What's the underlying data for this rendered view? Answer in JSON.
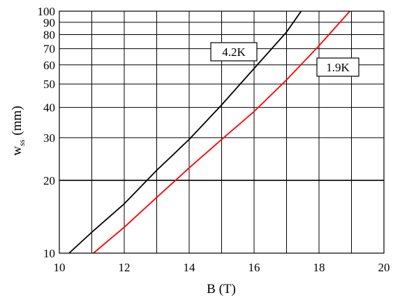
{
  "chart_data": {
    "type": "line",
    "title": "",
    "xlabel": "B (T)",
    "ylabel_main": "w",
    "ylabel_sub": "ss",
    "ylabel_unit": "(mm)",
    "xlim": [
      10,
      20
    ],
    "ylim": [
      10,
      100
    ],
    "yscale": "log",
    "grid": true,
    "xticks": [
      10,
      12,
      14,
      16,
      18,
      20
    ],
    "yticks": [
      10,
      20,
      30,
      40,
      50,
      60,
      70,
      80,
      90,
      100
    ],
    "series": [
      {
        "name": "4.2K",
        "color": "#000000",
        "x": [
          10.3,
          11,
          12,
          13,
          14,
          15,
          16,
          17,
          17.45
        ],
        "y": [
          10,
          12.2,
          16,
          22,
          29.5,
          41,
          58,
          82,
          100
        ]
      },
      {
        "name": "1.9K",
        "color": "#ff0000",
        "x": [
          11.05,
          12,
          13,
          14,
          15,
          16,
          17,
          18,
          18.95
        ],
        "y": [
          10,
          12.8,
          17,
          22.5,
          29.5,
          38.5,
          52,
          72,
          100
        ]
      }
    ]
  }
}
